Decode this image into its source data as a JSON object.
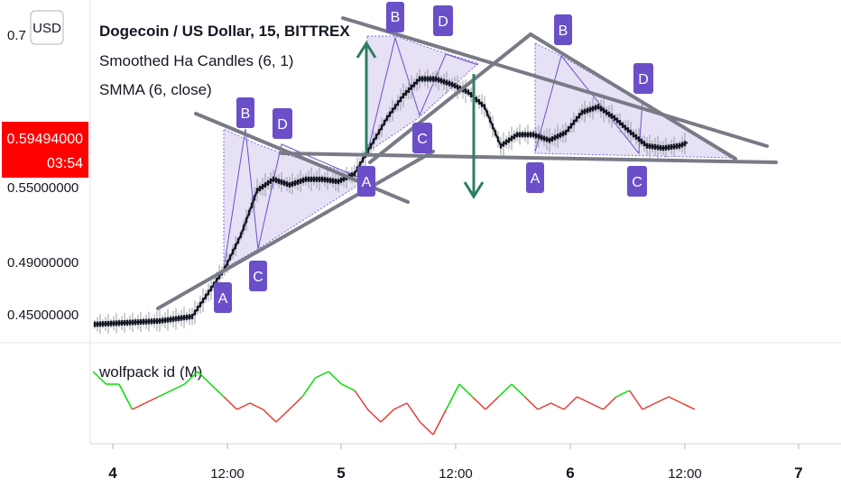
{
  "legend": {
    "title": "Dogecoin / US Dollar, 15, BITTREX",
    "indicator1": "Smoothed Ha Candles (6, 1)",
    "indicator2": "SMMA (6, close)",
    "sub_indicator": "wolfpack id (M)"
  },
  "currency_button": "USD",
  "price_badge": {
    "price": "0.59494000",
    "countdown": "03:54"
  },
  "colors": {
    "pattern_fill": "#e3dcf5",
    "pattern_stroke": "#6a4fc9",
    "label_bg": "#6a4fc9",
    "trendline": "#787b86",
    "arrow": "#2e7d66",
    "badge": "#ff0000",
    "osc_up": "#00e000",
    "osc_down": "#e53935"
  },
  "chart_data": [
    {
      "type": "line",
      "title": "Dogecoin / US Dollar, 15, BITTREX",
      "y_ticks": [
        "0.7   000",
        "0.59494000",
        "0.55000000",
        "0.49000000",
        "0.45000000"
      ],
      "x_ticks": [
        "4",
        "12:00",
        "5",
        "12:00",
        "6",
        "12:00",
        "7"
      ],
      "last_price": 0.59494,
      "series": [
        {
          "name": "Smoothed Ha Candles (6, 1)",
          "points": [
            [
              0,
              0.44
            ],
            [
              8,
              0.443
            ],
            [
              12,
              0.447
            ],
            [
              16,
              0.49
            ],
            [
              18,
              0.52
            ],
            [
              20,
              0.56
            ],
            [
              22,
              0.57
            ],
            [
              24,
              0.565
            ],
            [
              26,
              0.57
            ],
            [
              28,
              0.57
            ],
            [
              30,
              0.568
            ],
            [
              32,
              0.575
            ],
            [
              34,
              0.6
            ],
            [
              36,
              0.625
            ],
            [
              38,
              0.645
            ],
            [
              40,
              0.66
            ],
            [
              42,
              0.66
            ],
            [
              44,
              0.655
            ],
            [
              46,
              0.648
            ],
            [
              48,
              0.635
            ],
            [
              50,
              0.6
            ],
            [
              52,
              0.61
            ],
            [
              54,
              0.61
            ],
            [
              56,
              0.605
            ],
            [
              58,
              0.612
            ],
            [
              60,
              0.63
            ],
            [
              62,
              0.635
            ],
            [
              64,
              0.625
            ],
            [
              66,
              0.612
            ],
            [
              68,
              0.6
            ],
            [
              70,
              0.598
            ],
            [
              72,
              0.6
            ],
            [
              73,
              0.603
            ]
          ]
        }
      ],
      "patterns": [
        {
          "points": [
            "A",
            "B",
            "C",
            "D"
          ]
        },
        {
          "points": [
            "B",
            "D",
            "A",
            "C"
          ]
        },
        {
          "points": [
            "A",
            "B",
            "C",
            "D"
          ]
        }
      ],
      "legend_position": "top-left",
      "grid": false
    },
    {
      "type": "line",
      "title": "wolfpack id (M)",
      "series": [
        {
          "name": "wolfpack id (M)",
          "values": [
            2,
            1,
            1,
            -1,
            -0.5,
            0,
            0.5,
            1,
            2,
            1,
            0,
            -1,
            -0.5,
            -1,
            -2,
            -1,
            0,
            1.5,
            2,
            1,
            0.5,
            -1,
            -2,
            -1,
            -0.5,
            -2,
            -3,
            -1,
            1,
            0,
            -1,
            0,
            1,
            0,
            -1,
            -0.5,
            -1,
            0,
            -0.5,
            -1,
            0,
            0.5,
            -1,
            -0.5,
            0,
            -0.5,
            -1
          ]
        }
      ]
    }
  ]
}
